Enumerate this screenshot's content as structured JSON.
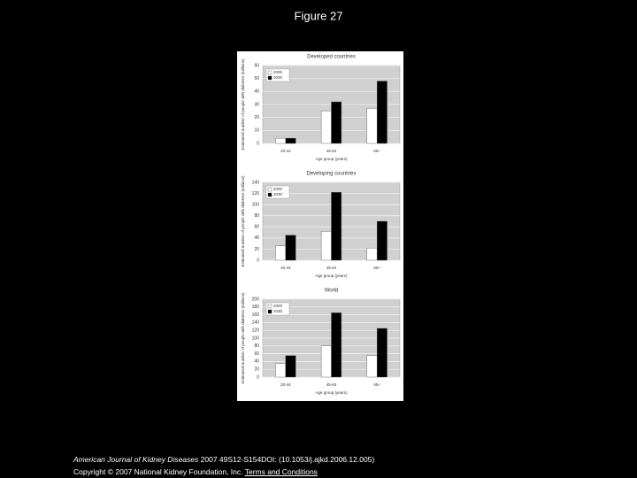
{
  "page": {
    "title": "Figure 27"
  },
  "chart_data": [
    {
      "type": "bar",
      "title": "Developed countries",
      "xlabel": "Age group (years)",
      "ylabel": "Estimated number of people with diabetes (millions)",
      "categories": [
        "20-44",
        "45-64",
        "65+"
      ],
      "series": [
        {
          "name": "2000",
          "color": "#ffffff",
          "values": [
            4,
            25,
            27
          ]
        },
        {
          "name": "2030",
          "color": "#000000",
          "values": [
            4,
            32,
            48
          ]
        }
      ],
      "ylim": [
        0,
        60
      ],
      "yticks": [
        0,
        10,
        20,
        30,
        40,
        50,
        60
      ],
      "grid": true,
      "legend": "upper left"
    },
    {
      "type": "bar",
      "title": "Developing countries",
      "xlabel": "Age group (years)",
      "ylabel": "Estimated number of people with diabetes (millions)",
      "categories": [
        "20-44",
        "45-64",
        "65+"
      ],
      "series": [
        {
          "name": "2000",
          "color": "#ffffff",
          "values": [
            26,
            52,
            22
          ]
        },
        {
          "name": "2030",
          "color": "#000000",
          "values": [
            45,
            122,
            70
          ]
        }
      ],
      "ylim": [
        0,
        140
      ],
      "yticks": [
        0,
        20,
        40,
        60,
        80,
        100,
        120,
        140
      ],
      "grid": true,
      "legend": "upper left"
    },
    {
      "type": "bar",
      "title": "World",
      "xlabel": "Age group (years)",
      "ylabel": "Estimated number of people with diabetes (millions)",
      "categories": [
        "20-44",
        "45-64",
        "65+"
      ],
      "series": [
        {
          "name": "2000",
          "color": "#ffffff",
          "values": [
            35,
            80,
            55
          ]
        },
        {
          "name": "2030",
          "color": "#000000",
          "values": [
            55,
            165,
            125
          ]
        }
      ],
      "ylim": [
        0,
        200
      ],
      "yticks": [
        0,
        20,
        40,
        60,
        80,
        100,
        120,
        140,
        160,
        180,
        200
      ],
      "grid": true,
      "legend": "upper left"
    }
  ],
  "footer": {
    "journal": "American Journal of Kidney Diseases",
    "citation": "2007 49S12-S154DOI: (10.1053/j.ajkd.2006.12.005)",
    "copyright": "Copyright © 2007 National Kidney Foundation, Inc.",
    "link": "Terms and Conditions"
  }
}
